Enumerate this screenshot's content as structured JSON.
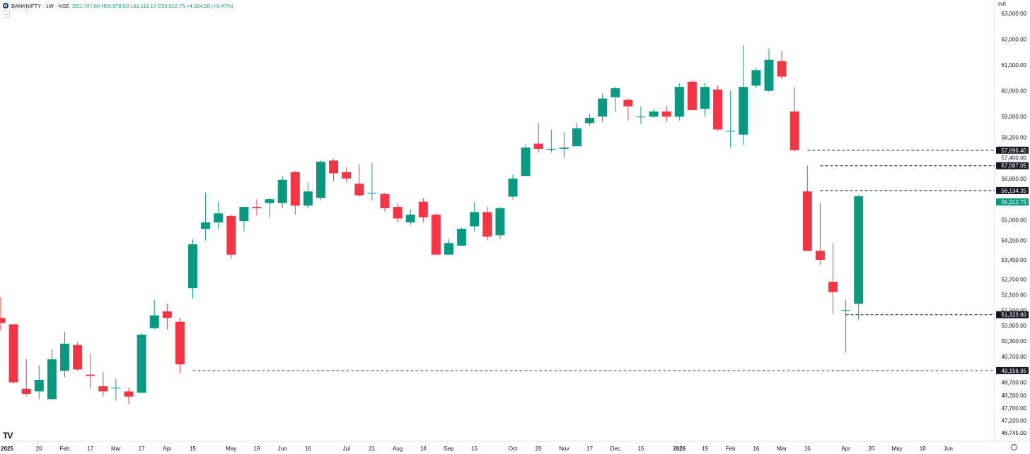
{
  "header": {
    "symbol": "BANKNIFTY · 1W · NSE",
    "ohlc": "O51,747.60 H55,978.50 L51,111.10 C55,912.75 +4,364.00 (+8.47%)"
  },
  "currency": "INR",
  "logo": "TV",
  "colors": {
    "up": "#089981",
    "down": "#f23645",
    "text": "#131722",
    "grid": "#ffffff"
  },
  "chart_data": {
    "type": "candlestick",
    "interval": "1W",
    "ylim": [
      46500,
      63300
    ],
    "y_ticks": [
      {
        "value": 63000,
        "label": "63,000.00"
      },
      {
        "value": 62000,
        "label": "62,000.00"
      },
      {
        "value": 61000,
        "label": "61,000.00"
      },
      {
        "value": 60000,
        "label": "60,000.00"
      },
      {
        "value": 59000,
        "label": "59,000.00"
      },
      {
        "value": 58200,
        "label": "58,200.00"
      },
      {
        "value": 57400,
        "label": "57,400.00"
      },
      {
        "value": 56600,
        "label": "56,600.00"
      },
      {
        "value": 55000,
        "label": "55,000.00"
      },
      {
        "value": 54200,
        "label": "54,200.00"
      },
      {
        "value": 53450,
        "label": "53,450.00"
      },
      {
        "value": 52700,
        "label": "52,700.00"
      },
      {
        "value": 52100,
        "label": "52,100.00"
      },
      {
        "value": 51500,
        "label": "51,500.00"
      },
      {
        "value": 50900,
        "label": "50,900.00"
      },
      {
        "value": 50300,
        "label": "50,300.00"
      },
      {
        "value": 49700,
        "label": "49,700.00"
      },
      {
        "value": 48700,
        "label": "48,700.00"
      },
      {
        "value": 48200,
        "label": "48,200.00"
      },
      {
        "value": 47700,
        "label": "47,700.00"
      },
      {
        "value": 47220,
        "label": "47,220.00"
      },
      {
        "value": 46745,
        "label": "46,745.00"
      }
    ],
    "x_ticks": [
      {
        "index": 0.5,
        "label": "2025",
        "bold": true
      },
      {
        "index": 3,
        "label": "20"
      },
      {
        "index": 5,
        "label": "Feb"
      },
      {
        "index": 7,
        "label": "17"
      },
      {
        "index": 9,
        "label": "Mar"
      },
      {
        "index": 11,
        "label": "17"
      },
      {
        "index": 13,
        "label": "Apr"
      },
      {
        "index": 15,
        "label": "15"
      },
      {
        "index": 18,
        "label": "May"
      },
      {
        "index": 20,
        "label": "19"
      },
      {
        "index": 22,
        "label": "Jun"
      },
      {
        "index": 24,
        "label": "16"
      },
      {
        "index": 27,
        "label": "Jul"
      },
      {
        "index": 29,
        "label": "21"
      },
      {
        "index": 31,
        "label": "Aug"
      },
      {
        "index": 33,
        "label": "18"
      },
      {
        "index": 35,
        "label": "Sep"
      },
      {
        "index": 37,
        "label": "15"
      },
      {
        "index": 40,
        "label": "Oct"
      },
      {
        "index": 42,
        "label": "20"
      },
      {
        "index": 44,
        "label": "Nov"
      },
      {
        "index": 46,
        "label": "17"
      },
      {
        "index": 48,
        "label": "Dec"
      },
      {
        "index": 50,
        "label": "15"
      },
      {
        "index": 53,
        "label": "2026",
        "bold": true
      },
      {
        "index": 55,
        "label": "19"
      },
      {
        "index": 57,
        "label": "Feb"
      },
      {
        "index": 59,
        "label": "16"
      },
      {
        "index": 61,
        "label": "Mar"
      },
      {
        "index": 63,
        "label": "16"
      },
      {
        "index": 66,
        "label": "Apr"
      },
      {
        "index": 68,
        "label": "20"
      },
      {
        "index": 70,
        "label": "May"
      },
      {
        "index": 72,
        "label": "18"
      },
      {
        "index": 74,
        "label": "Jun"
      }
    ],
    "candles": [
      {
        "o": 51200,
        "h": 52000,
        "l": 50700,
        "c": 51000
      },
      {
        "o": 50950,
        "h": 50950,
        "l": 48650,
        "c": 48700
      },
      {
        "o": 48450,
        "h": 49600,
        "l": 48150,
        "c": 48250
      },
      {
        "o": 48350,
        "h": 49350,
        "l": 48050,
        "c": 48800
      },
      {
        "o": 48050,
        "h": 50000,
        "l": 48050,
        "c": 49600
      },
      {
        "o": 49150,
        "h": 50650,
        "l": 48900,
        "c": 50200
      },
      {
        "o": 50150,
        "h": 50250,
        "l": 49150,
        "c": 49200
      },
      {
        "o": 49000,
        "h": 49800,
        "l": 48450,
        "c": 48950
      },
      {
        "o": 48550,
        "h": 49100,
        "l": 48150,
        "c": 48350
      },
      {
        "o": 48500,
        "h": 48850,
        "l": 48000,
        "c": 48500
      },
      {
        "o": 48350,
        "h": 48500,
        "l": 47850,
        "c": 48150
      },
      {
        "o": 48300,
        "h": 50600,
        "l": 48300,
        "c": 50550
      },
      {
        "o": 50800,
        "h": 51900,
        "l": 50750,
        "c": 51300
      },
      {
        "o": 51450,
        "h": 51750,
        "l": 50750,
        "c": 51200
      },
      {
        "o": 51050,
        "h": 51200,
        "l": 49050,
        "c": 49400
      },
      {
        "o": 52350,
        "h": 54250,
        "l": 51950,
        "c": 54050
      },
      {
        "o": 54650,
        "h": 56050,
        "l": 54200,
        "c": 54900
      },
      {
        "o": 54900,
        "h": 55700,
        "l": 54650,
        "c": 55250
      },
      {
        "o": 55150,
        "h": 55200,
        "l": 53500,
        "c": 53650
      },
      {
        "o": 54950,
        "h": 55450,
        "l": 54550,
        "c": 55500
      },
      {
        "o": 55500,
        "h": 55800,
        "l": 55150,
        "c": 55450
      },
      {
        "o": 55650,
        "h": 55850,
        "l": 55100,
        "c": 55800
      },
      {
        "o": 55650,
        "h": 56700,
        "l": 55450,
        "c": 56550
      },
      {
        "o": 56850,
        "h": 56900,
        "l": 55200,
        "c": 55550
      },
      {
        "o": 55550,
        "h": 56450,
        "l": 55450,
        "c": 56100
      },
      {
        "o": 55850,
        "h": 57300,
        "l": 55750,
        "c": 57250
      },
      {
        "o": 57300,
        "h": 57350,
        "l": 56500,
        "c": 56800
      },
      {
        "o": 56850,
        "h": 57050,
        "l": 56450,
        "c": 56600
      },
      {
        "o": 56400,
        "h": 57150,
        "l": 55900,
        "c": 55950
      },
      {
        "o": 56050,
        "h": 57200,
        "l": 55750,
        "c": 56050
      },
      {
        "o": 56000,
        "h": 56050,
        "l": 55300,
        "c": 55450
      },
      {
        "o": 55500,
        "h": 55650,
        "l": 54900,
        "c": 55050
      },
      {
        "o": 54900,
        "h": 55400,
        "l": 54800,
        "c": 55200
      },
      {
        "o": 55700,
        "h": 55850,
        "l": 54900,
        "c": 55100
      },
      {
        "o": 55200,
        "h": 55250,
        "l": 53650,
        "c": 53650
      },
      {
        "o": 53650,
        "h": 54250,
        "l": 53650,
        "c": 54100
      },
      {
        "o": 54000,
        "h": 54700,
        "l": 54000,
        "c": 54650
      },
      {
        "o": 54750,
        "h": 55700,
        "l": 54550,
        "c": 55300
      },
      {
        "o": 55300,
        "h": 55500,
        "l": 54200,
        "c": 54350
      },
      {
        "o": 54400,
        "h": 55500,
        "l": 54250,
        "c": 55450
      },
      {
        "o": 55900,
        "h": 56750,
        "l": 55800,
        "c": 56600
      },
      {
        "o": 56700,
        "h": 57950,
        "l": 56700,
        "c": 57800
      },
      {
        "o": 57950,
        "h": 58750,
        "l": 57600,
        "c": 57750
      },
      {
        "o": 57750,
        "h": 58500,
        "l": 57600,
        "c": 57750
      },
      {
        "o": 57750,
        "h": 58400,
        "l": 57400,
        "c": 57800
      },
      {
        "o": 57850,
        "h": 58750,
        "l": 57850,
        "c": 58550
      },
      {
        "o": 58750,
        "h": 59100,
        "l": 58650,
        "c": 58950
      },
      {
        "o": 59000,
        "h": 59900,
        "l": 58800,
        "c": 59700
      },
      {
        "o": 59750,
        "h": 60150,
        "l": 59200,
        "c": 60100
      },
      {
        "o": 59650,
        "h": 59700,
        "l": 58850,
        "c": 59400
      },
      {
        "o": 59000,
        "h": 59400,
        "l": 58700,
        "c": 59000
      },
      {
        "o": 59000,
        "h": 59300,
        "l": 58950,
        "c": 59200
      },
      {
        "o": 59200,
        "h": 59400,
        "l": 58800,
        "c": 59000
      },
      {
        "o": 59000,
        "h": 60300,
        "l": 58850,
        "c": 60150
      },
      {
        "o": 60350,
        "h": 60400,
        "l": 59250,
        "c": 59250
      },
      {
        "o": 59300,
        "h": 60300,
        "l": 59000,
        "c": 60150
      },
      {
        "o": 60050,
        "h": 60200,
        "l": 58450,
        "c": 58500
      },
      {
        "o": 58450,
        "h": 60000,
        "l": 57800,
        "c": 58450
      },
      {
        "o": 58300,
        "h": 61750,
        "l": 57900,
        "c": 60150
      },
      {
        "o": 60200,
        "h": 60900,
        "l": 60100,
        "c": 60800
      },
      {
        "o": 60000,
        "h": 61650,
        "l": 59950,
        "c": 61200
      },
      {
        "o": 61150,
        "h": 61550,
        "l": 60450,
        "c": 60550
      },
      {
        "o": 59200,
        "h": 60150,
        "l": 57650,
        "c": 57700
      },
      {
        "o": 56100,
        "h": 57100,
        "l": 53800,
        "c": 53800
      },
      {
        "o": 53800,
        "h": 55650,
        "l": 53250,
        "c": 53450
      },
      {
        "o": 52600,
        "h": 54100,
        "l": 51350,
        "c": 52200
      },
      {
        "o": 51500,
        "h": 51900,
        "l": 49850,
        "c": 51500
      },
      {
        "o": 51747.6,
        "h": 55978.5,
        "l": 51111.1,
        "c": 55912.75
      }
    ],
    "levels": [
      {
        "value": 57696.4,
        "label": "57,696.40",
        "from_index": 63,
        "kind": "black"
      },
      {
        "value": 57097.05,
        "label": "57,097.05",
        "from_index": 64,
        "kind": "black"
      },
      {
        "value": 56134.35,
        "label": "56,134.35",
        "from_index": 64,
        "kind": "black"
      },
      {
        "value": 51323.6,
        "label": "51,323.60",
        "from_index": 66,
        "kind": "black"
      },
      {
        "value": 49156.95,
        "label": "49,156.95",
        "from_index": 15,
        "kind": "gray"
      }
    ],
    "last_price": {
      "value": 55912.75,
      "label": "55,912.75"
    }
  }
}
